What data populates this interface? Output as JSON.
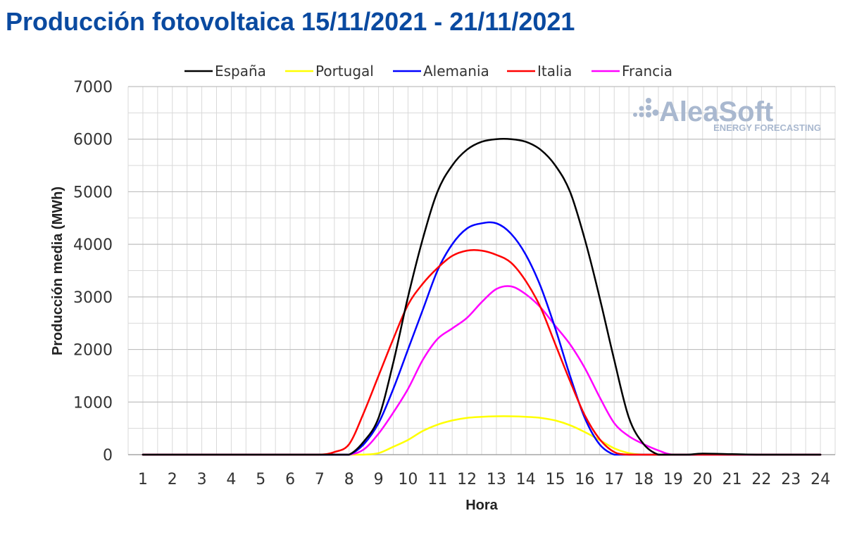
{
  "page": {
    "title": "Producción fotovoltaica 15/11/2021 - 21/11/2021"
  },
  "logo": {
    "name": "AleaSoft",
    "tagline": "ENERGY FORECASTING"
  },
  "colors": {
    "title": "#0a4aa0",
    "España": "#000000",
    "Portugal": "#ffff00",
    "Alemania": "#0000ff",
    "Italia": "#ff0000",
    "Francia": "#ff00ff",
    "grid": "#d9d9d9",
    "axis": "#a6a6a6"
  },
  "chart_data": {
    "type": "line",
    "title": "",
    "xlabel": "Hora",
    "ylabel": "Producción media (MWh)",
    "ylim": [
      0,
      7000
    ],
    "yticks": [
      0,
      1000,
      2000,
      3000,
      4000,
      5000,
      6000,
      7000
    ],
    "xlim": [
      0.5,
      24.5
    ],
    "grid": true,
    "legend_position": "top",
    "categories": [
      "1",
      "2",
      "3",
      "4",
      "5",
      "6",
      "7",
      "8",
      "9",
      "10",
      "11",
      "12",
      "13",
      "14",
      "15",
      "16",
      "17",
      "18",
      "19",
      "20",
      "21",
      "22",
      "23",
      "24"
    ],
    "series": [
      {
        "name": "España",
        "x": [
          1,
          2,
          3,
          4,
          5,
          6,
          7,
          7.5,
          8,
          8.5,
          9,
          9.5,
          10,
          10.5,
          11,
          11.5,
          12,
          12.5,
          13,
          13.5,
          14,
          14.5,
          15,
          15.5,
          16,
          16.5,
          17,
          17.5,
          18,
          18.5,
          19,
          19.5,
          20,
          21,
          22,
          23,
          24
        ],
        "values": [
          0,
          0,
          0,
          0,
          0,
          0,
          0,
          0,
          0,
          250,
          700,
          1750,
          3000,
          4100,
          5000,
          5500,
          5800,
          5950,
          6000,
          6000,
          5950,
          5800,
          5500,
          5000,
          4100,
          3000,
          1800,
          700,
          200,
          0,
          0,
          0,
          20,
          10,
          0,
          0,
          0
        ]
      },
      {
        "name": "Portugal",
        "x": [
          1,
          2,
          3,
          4,
          5,
          6,
          7,
          8,
          8.5,
          9,
          9.5,
          10,
          10.5,
          11,
          11.5,
          12,
          12.5,
          13,
          13.5,
          14,
          14.5,
          15,
          15.5,
          16,
          16.5,
          17,
          17.5,
          18,
          18.5,
          19,
          20,
          21,
          22,
          23,
          24
        ],
        "values": [
          0,
          0,
          0,
          0,
          0,
          0,
          0,
          0,
          0,
          30,
          150,
          280,
          450,
          570,
          650,
          700,
          720,
          730,
          730,
          720,
          700,
          650,
          560,
          430,
          280,
          120,
          30,
          0,
          0,
          0,
          0,
          0,
          0,
          0,
          0
        ]
      },
      {
        "name": "Alemania",
        "x": [
          1,
          2,
          3,
          4,
          5,
          6,
          7,
          7.5,
          8,
          8.5,
          9,
          9.5,
          10,
          10.5,
          11,
          11.5,
          12,
          12.5,
          13,
          13.5,
          14,
          14.5,
          15,
          15.5,
          16,
          16.5,
          17,
          17.5,
          18,
          19,
          20,
          21,
          22,
          23,
          24
        ],
        "values": [
          0,
          0,
          0,
          0,
          0,
          0,
          0,
          0,
          0,
          200,
          600,
          1250,
          2000,
          2750,
          3500,
          4000,
          4300,
          4400,
          4400,
          4200,
          3800,
          3200,
          2400,
          1500,
          700,
          200,
          0,
          0,
          0,
          0,
          0,
          0,
          0,
          0,
          0
        ]
      },
      {
        "name": "Italia",
        "x": [
          1,
          2,
          3,
          4,
          5,
          6,
          7,
          7.5,
          8,
          8.5,
          9,
          9.5,
          10,
          10.5,
          11,
          11.5,
          12,
          12.5,
          13,
          13.5,
          14,
          14.5,
          15,
          15.5,
          16,
          16.5,
          17,
          17.5,
          18,
          19,
          20,
          21,
          22,
          23,
          24
        ],
        "values": [
          0,
          0,
          0,
          0,
          0,
          0,
          0,
          50,
          200,
          800,
          1500,
          2200,
          2850,
          3250,
          3550,
          3780,
          3880,
          3880,
          3800,
          3650,
          3300,
          2800,
          2100,
          1400,
          750,
          300,
          50,
          0,
          0,
          0,
          0,
          0,
          0,
          0,
          0
        ]
      },
      {
        "name": "Francia",
        "x": [
          1,
          2,
          3,
          4,
          5,
          6,
          7,
          7.5,
          8,
          8.5,
          9,
          9.5,
          10,
          10.5,
          11,
          11.5,
          12,
          12.5,
          13,
          13.5,
          14,
          14.5,
          15,
          15.5,
          16,
          16.5,
          17,
          17.5,
          18,
          18.5,
          19,
          20,
          21,
          22,
          23,
          24
        ],
        "values": [
          0,
          0,
          0,
          0,
          0,
          0,
          0,
          0,
          0,
          100,
          400,
          800,
          1250,
          1800,
          2200,
          2400,
          2600,
          2900,
          3150,
          3200,
          3050,
          2800,
          2450,
          2100,
          1650,
          1100,
          600,
          350,
          200,
          80,
          0,
          0,
          0,
          0,
          0,
          0
        ]
      }
    ]
  }
}
